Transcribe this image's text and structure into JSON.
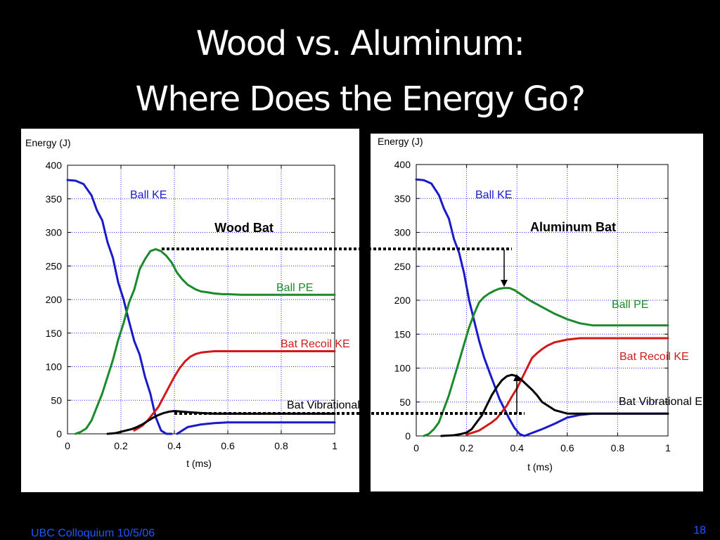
{
  "slide": {
    "title_line1": "Wood vs. Aluminum:",
    "title_line2": "Where Does the Energy Go?",
    "footer_left": "UBC Colloquium 10/5/06",
    "page_number": "18"
  },
  "colors": {
    "background": "#000000",
    "title": "#ffffff",
    "footer": "#1f57ff",
    "ball_ke": "#1a1ac8",
    "ball_pe": "#1a8a2a",
    "bat_recoil_ke": "#d01a1a",
    "bat_vibrational_e": "#000000"
  },
  "chart_data": [
    {
      "type": "line",
      "title": "Wood Bat",
      "ylabel": "Energy (J)",
      "xlabel": "t (ms)",
      "xlim": [
        0,
        1
      ],
      "ylim": [
        0,
        400
      ],
      "xticks": [
        "0",
        "0.2",
        "0.4",
        "0.6",
        "0.8",
        "1"
      ],
      "yticks": [
        "0",
        "50",
        "100",
        "150",
        "200",
        "250",
        "300",
        "350",
        "400"
      ],
      "grid": true,
      "series": [
        {
          "name": "Ball KE",
          "color": "#1a1ac8",
          "x": [
            0,
            0.03,
            0.06,
            0.09,
            0.11,
            0.13,
            0.15,
            0.17,
            0.19,
            0.21,
            0.23,
            0.25,
            0.27,
            0.29,
            0.31,
            0.33,
            0.35,
            0.37,
            0.39,
            0.4,
            0.41,
            0.43,
            0.45,
            0.5,
            0.55,
            0.6,
            0.7,
            1
          ],
          "y": [
            378,
            377,
            372,
            355,
            333,
            318,
            285,
            262,
            225,
            200,
            168,
            138,
            118,
            85,
            60,
            25,
            5,
            0,
            0,
            null,
            0,
            5,
            10,
            14,
            16,
            17,
            17,
            17
          ]
        },
        {
          "name": "Ball PE",
          "color": "#1a8a2a",
          "x": [
            0.03,
            0.05,
            0.07,
            0.09,
            0.11,
            0.13,
            0.15,
            0.17,
            0.19,
            0.21,
            0.23,
            0.25,
            0.27,
            0.29,
            0.31,
            0.33,
            0.35,
            0.37,
            0.39,
            0.41,
            0.43,
            0.45,
            0.48,
            0.5,
            0.52,
            0.55,
            0.58,
            0.6,
            0.65,
            0.7,
            1
          ],
          "y": [
            0,
            3,
            8,
            20,
            40,
            60,
            85,
            110,
            140,
            165,
            195,
            215,
            245,
            260,
            272,
            275,
            272,
            265,
            255,
            240,
            230,
            222,
            215,
            212,
            211,
            209,
            208,
            208,
            207,
            207,
            207
          ]
        },
        {
          "name": "Bat Recoil KE",
          "color": "#d01a1a",
          "x": [
            0.25,
            0.28,
            0.3,
            0.32,
            0.34,
            0.36,
            0.38,
            0.4,
            0.42,
            0.44,
            0.46,
            0.48,
            0.5,
            0.52,
            0.55,
            0.6,
            0.65,
            0.7,
            1
          ],
          "y": [
            5,
            12,
            20,
            30,
            40,
            55,
            70,
            85,
            98,
            108,
            115,
            119,
            121,
            122,
            123,
            123,
            123,
            123,
            123
          ]
        },
        {
          "name": "Bat Vibrational E",
          "color": "#000000",
          "x": [
            0.15,
            0.18,
            0.2,
            0.22,
            0.24,
            0.26,
            0.28,
            0.3,
            0.32,
            0.34,
            0.36,
            0.38,
            0.4,
            0.43,
            0.46,
            0.5,
            0.55,
            0.6,
            0.7,
            1
          ],
          "y": [
            0,
            1,
            3,
            5,
            7,
            10,
            14,
            19,
            24,
            28,
            31,
            33,
            34,
            33,
            32,
            31,
            30,
            30,
            30,
            30
          ]
        }
      ],
      "series_labels": [
        "Ball KE",
        "Ball PE",
        "Bat Recoil KE",
        "Bat Vibrational E"
      ]
    },
    {
      "type": "line",
      "title": "Aluminum Bat",
      "ylabel": "Energy (J)",
      "xlabel": "t (ms)",
      "xlim": [
        0,
        1
      ],
      "ylim": [
        0,
        400
      ],
      "xticks": [
        "0",
        "0.2",
        "0.4",
        "0.6",
        "0.8",
        "1"
      ],
      "yticks": [
        "0",
        "50",
        "100",
        "150",
        "200",
        "250",
        "300",
        "350",
        "400"
      ],
      "grid": true,
      "series": [
        {
          "name": "Ball KE",
          "color": "#1a1ac8",
          "x": [
            0,
            0.03,
            0.06,
            0.09,
            0.11,
            0.13,
            0.15,
            0.17,
            0.19,
            0.21,
            0.23,
            0.25,
            0.27,
            0.29,
            0.31,
            0.33,
            0.35,
            0.37,
            0.39,
            0.41,
            0.43,
            0.45,
            0.5,
            0.55,
            0.6,
            0.65,
            0.7,
            1
          ],
          "y": [
            378,
            377,
            372,
            355,
            335,
            320,
            290,
            270,
            240,
            200,
            170,
            140,
            115,
            95,
            75,
            55,
            40,
            25,
            12,
            3,
            0,
            3,
            10,
            18,
            27,
            31,
            33,
            33
          ]
        },
        {
          "name": "Ball PE",
          "color": "#1a8a2a",
          "x": [
            0.03,
            0.05,
            0.07,
            0.09,
            0.11,
            0.13,
            0.15,
            0.17,
            0.19,
            0.21,
            0.23,
            0.25,
            0.27,
            0.29,
            0.31,
            0.33,
            0.35,
            0.37,
            0.39,
            0.41,
            0.43,
            0.45,
            0.5,
            0.55,
            0.6,
            0.65,
            0.7,
            1
          ],
          "y": [
            0,
            3,
            10,
            20,
            40,
            60,
            85,
            110,
            135,
            160,
            180,
            197,
            205,
            210,
            214,
            217,
            218,
            218,
            215,
            210,
            205,
            200,
            190,
            180,
            172,
            166,
            163,
            163
          ]
        },
        {
          "name": "Bat Recoil KE",
          "color": "#d01a1a",
          "x": [
            0.2,
            0.25,
            0.3,
            0.32,
            0.34,
            0.36,
            0.38,
            0.4,
            0.42,
            0.44,
            0.46,
            0.48,
            0.5,
            0.52,
            0.55,
            0.6,
            0.65,
            0.7,
            1
          ],
          "y": [
            2,
            8,
            20,
            26,
            35,
            45,
            58,
            70,
            85,
            100,
            115,
            122,
            128,
            133,
            138,
            142,
            144,
            144,
            144
          ]
        },
        {
          "name": "Bat Vibrational E",
          "color": "#000000",
          "x": [
            0.1,
            0.15,
            0.18,
            0.2,
            0.22,
            0.24,
            0.26,
            0.28,
            0.3,
            0.32,
            0.34,
            0.36,
            0.38,
            0.4,
            0.42,
            0.44,
            0.46,
            0.48,
            0.5,
            0.55,
            0.6,
            0.7,
            1
          ],
          "y": [
            0,
            1,
            3,
            5,
            10,
            20,
            30,
            45,
            60,
            72,
            82,
            88,
            90,
            88,
            82,
            75,
            68,
            60,
            50,
            38,
            33,
            33,
            33
          ]
        }
      ],
      "series_labels": [
        "Ball KE",
        "Ball PE",
        "Bat Recoil KE",
        "Bat Vibrational E"
      ]
    }
  ]
}
